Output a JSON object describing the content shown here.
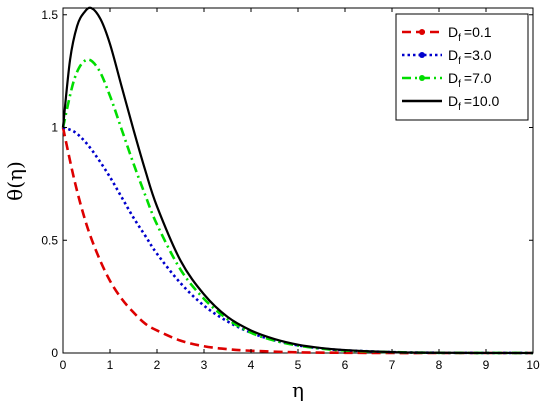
{
  "chart_data": {
    "type": "line",
    "xlabel": "η",
    "ylabel": "θ(η)",
    "xlim": [
      0,
      10
    ],
    "ylim": [
      0,
      1.53
    ],
    "xticks": [
      "0",
      "1",
      "2",
      "3",
      "4",
      "5",
      "6",
      "7",
      "8",
      "9",
      "10"
    ],
    "yticks": [
      "0",
      "0.5",
      "1",
      "1.5"
    ],
    "grid": false,
    "legend_position": "top-right",
    "series": [
      {
        "name": "D_f =0.1",
        "legend_base": "D",
        "legend_sub": "f",
        "legend_value": "=0.1",
        "color": "#dd0000",
        "style": "dashed",
        "x": [
          0,
          0.25,
          0.5,
          0.75,
          1,
          1.25,
          1.5,
          1.75,
          2,
          2.5,
          3,
          3.5,
          4,
          5,
          6,
          7,
          8,
          10
        ],
        "y": [
          1.0,
          0.76,
          0.57,
          0.43,
          0.32,
          0.24,
          0.18,
          0.13,
          0.1,
          0.055,
          0.03,
          0.017,
          0.01,
          0.003,
          0.001,
          0,
          0,
          0
        ]
      },
      {
        "name": "D_f =3.0",
        "legend_base": "D",
        "legend_sub": "f",
        "legend_value": "=3.0",
        "color": "#0000cc",
        "style": "dotted",
        "x": [
          0,
          0.25,
          0.5,
          0.75,
          1,
          1.25,
          1.5,
          1.75,
          2,
          2.5,
          3,
          3.5,
          4,
          4.5,
          5,
          5.5,
          6,
          7,
          8,
          10
        ],
        "y": [
          1.0,
          0.98,
          0.93,
          0.86,
          0.78,
          0.69,
          0.6,
          0.52,
          0.44,
          0.31,
          0.21,
          0.14,
          0.09,
          0.056,
          0.034,
          0.02,
          0.012,
          0.004,
          0.001,
          0
        ]
      },
      {
        "name": "D_f =7.0",
        "legend_base": "D",
        "legend_sub": "f",
        "legend_value": "=7.0",
        "color": "#00dd00",
        "style": "dashdot",
        "x": [
          0,
          0.25,
          0.5,
          0.75,
          1,
          1.25,
          1.5,
          1.75,
          2,
          2.5,
          3,
          3.5,
          4,
          4.5,
          5,
          5.5,
          6,
          7,
          8,
          10
        ],
        "y": [
          1.0,
          1.22,
          1.3,
          1.26,
          1.14,
          0.99,
          0.84,
          0.7,
          0.57,
          0.37,
          0.24,
          0.15,
          0.09,
          0.055,
          0.033,
          0.019,
          0.011,
          0.004,
          0.001,
          0
        ]
      },
      {
        "name": "D_f =10.0",
        "legend_base": "D",
        "legend_sub": "f",
        "legend_value": "=10.0",
        "color": "#000000",
        "style": "solid",
        "x": [
          0,
          0.15,
          0.3,
          0.45,
          0.6,
          0.8,
          1,
          1.25,
          1.5,
          1.75,
          2,
          2.5,
          3,
          3.5,
          4,
          4.5,
          5,
          5.5,
          6,
          7,
          8,
          10
        ],
        "y": [
          1.0,
          1.3,
          1.45,
          1.51,
          1.53,
          1.48,
          1.37,
          1.18,
          0.99,
          0.81,
          0.65,
          0.41,
          0.26,
          0.16,
          0.1,
          0.062,
          0.037,
          0.022,
          0.013,
          0.004,
          0.001,
          0
        ]
      }
    ]
  }
}
